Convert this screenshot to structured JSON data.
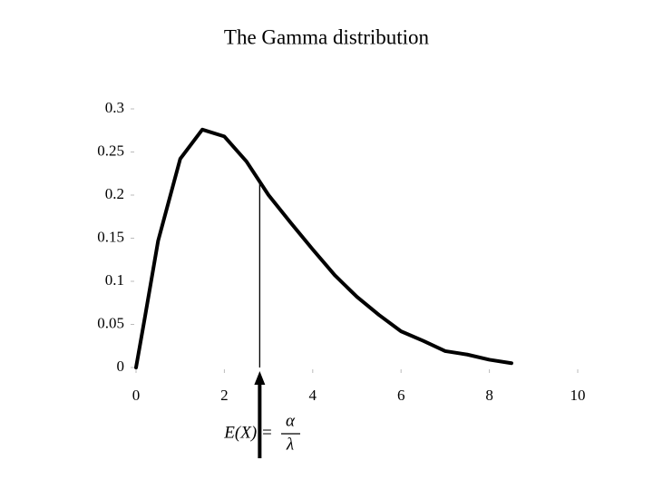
{
  "chart_data": {
    "type": "line",
    "title": "The Gamma distribution",
    "x": [
      0,
      0.2,
      0.5,
      1,
      1.5,
      2,
      2.5,
      3,
      3.5,
      4,
      4.5,
      5,
      5.5,
      6,
      6.5,
      7,
      7.5,
      8,
      8.5
    ],
    "values": [
      0,
      0.058,
      0.147,
      0.242,
      0.276,
      0.268,
      0.239,
      0.2,
      0.168,
      0.137,
      0.107,
      0.082,
      0.061,
      0.042,
      0.031,
      0.019,
      0.015,
      0.009,
      0.005
    ],
    "color": "#000000",
    "xlim": [
      0,
      10
    ],
    "xticks": [
      0,
      2,
      4,
      6,
      8,
      10
    ],
    "ylim": [
      0,
      0.3
    ],
    "yticks": [
      0,
      0.05,
      0.1,
      0.15,
      0.2,
      0.25,
      0.3
    ],
    "grid": false,
    "mean": 2.8,
    "annotation": {
      "lhs": "E(X) =",
      "numerator": "α",
      "denominator": "λ"
    }
  }
}
